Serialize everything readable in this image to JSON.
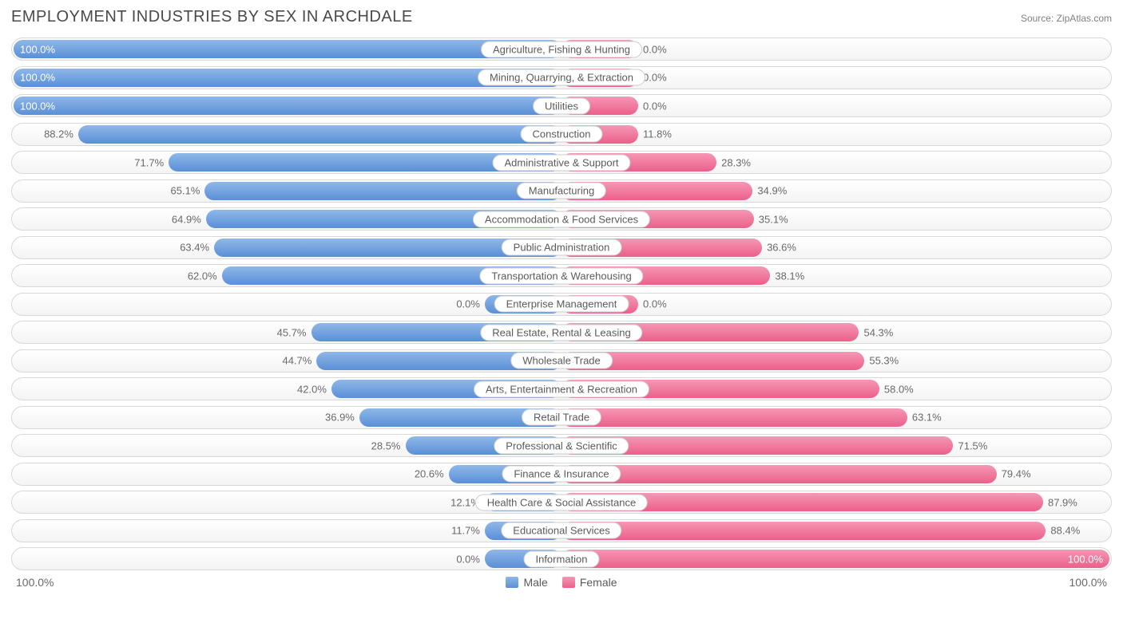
{
  "title": "EMPLOYMENT INDUSTRIES BY SEX IN ARCHDALE",
  "source_prefix": "Source: ",
  "source_name": "ZipAtlas.com",
  "chart": {
    "type": "diverging-bar",
    "male_color_top": "#8fb8e8",
    "male_color_bottom": "#5a8fd6",
    "female_color_top": "#f598b5",
    "female_color_bottom": "#ec5f8a",
    "row_bg_top": "#ffffff",
    "row_bg_bottom": "#f4f4f4",
    "border_color": "#d8d8d8",
    "label_bg": "#ffffff",
    "label_border": "#cccccc",
    "text_color": "#696969",
    "value_in_bar_color": "#ffffff",
    "fontsize_title": 20,
    "fontsize_value": 13,
    "fontsize_label": 13,
    "min_bar_pct": 14,
    "axis_left": "100.0%",
    "axis_right": "100.0%",
    "legend_male": "Male",
    "legend_female": "Female",
    "rows": [
      {
        "label": "Agriculture, Fishing & Hunting",
        "male": 100.0,
        "female": 0.0,
        "male_txt": "100.0%",
        "female_txt": "0.0%"
      },
      {
        "label": "Mining, Quarrying, & Extraction",
        "male": 100.0,
        "female": 0.0,
        "male_txt": "100.0%",
        "female_txt": "0.0%"
      },
      {
        "label": "Utilities",
        "male": 100.0,
        "female": 0.0,
        "male_txt": "100.0%",
        "female_txt": "0.0%"
      },
      {
        "label": "Construction",
        "male": 88.2,
        "female": 11.8,
        "male_txt": "88.2%",
        "female_txt": "11.8%"
      },
      {
        "label": "Administrative & Support",
        "male": 71.7,
        "female": 28.3,
        "male_txt": "71.7%",
        "female_txt": "28.3%"
      },
      {
        "label": "Manufacturing",
        "male": 65.1,
        "female": 34.9,
        "male_txt": "65.1%",
        "female_txt": "34.9%"
      },
      {
        "label": "Accommodation & Food Services",
        "male": 64.9,
        "female": 35.1,
        "male_txt": "64.9%",
        "female_txt": "35.1%"
      },
      {
        "label": "Public Administration",
        "male": 63.4,
        "female": 36.6,
        "male_txt": "63.4%",
        "female_txt": "36.6%"
      },
      {
        "label": "Transportation & Warehousing",
        "male": 62.0,
        "female": 38.1,
        "male_txt": "62.0%",
        "female_txt": "38.1%"
      },
      {
        "label": "Enterprise Management",
        "male": 0.0,
        "female": 0.0,
        "male_txt": "0.0%",
        "female_txt": "0.0%"
      },
      {
        "label": "Real Estate, Rental & Leasing",
        "male": 45.7,
        "female": 54.3,
        "male_txt": "45.7%",
        "female_txt": "54.3%"
      },
      {
        "label": "Wholesale Trade",
        "male": 44.7,
        "female": 55.3,
        "male_txt": "44.7%",
        "female_txt": "55.3%"
      },
      {
        "label": "Arts, Entertainment & Recreation",
        "male": 42.0,
        "female": 58.0,
        "male_txt": "42.0%",
        "female_txt": "58.0%"
      },
      {
        "label": "Retail Trade",
        "male": 36.9,
        "female": 63.1,
        "male_txt": "36.9%",
        "female_txt": "63.1%"
      },
      {
        "label": "Professional & Scientific",
        "male": 28.5,
        "female": 71.5,
        "male_txt": "28.5%",
        "female_txt": "71.5%"
      },
      {
        "label": "Finance & Insurance",
        "male": 20.6,
        "female": 79.4,
        "male_txt": "20.6%",
        "female_txt": "79.4%"
      },
      {
        "label": "Health Care & Social Assistance",
        "male": 12.1,
        "female": 87.9,
        "male_txt": "12.1%",
        "female_txt": "87.9%"
      },
      {
        "label": "Educational Services",
        "male": 11.7,
        "female": 88.4,
        "male_txt": "11.7%",
        "female_txt": "88.4%"
      },
      {
        "label": "Information",
        "male": 0.0,
        "female": 100.0,
        "male_txt": "0.0%",
        "female_txt": "100.0%"
      }
    ]
  }
}
